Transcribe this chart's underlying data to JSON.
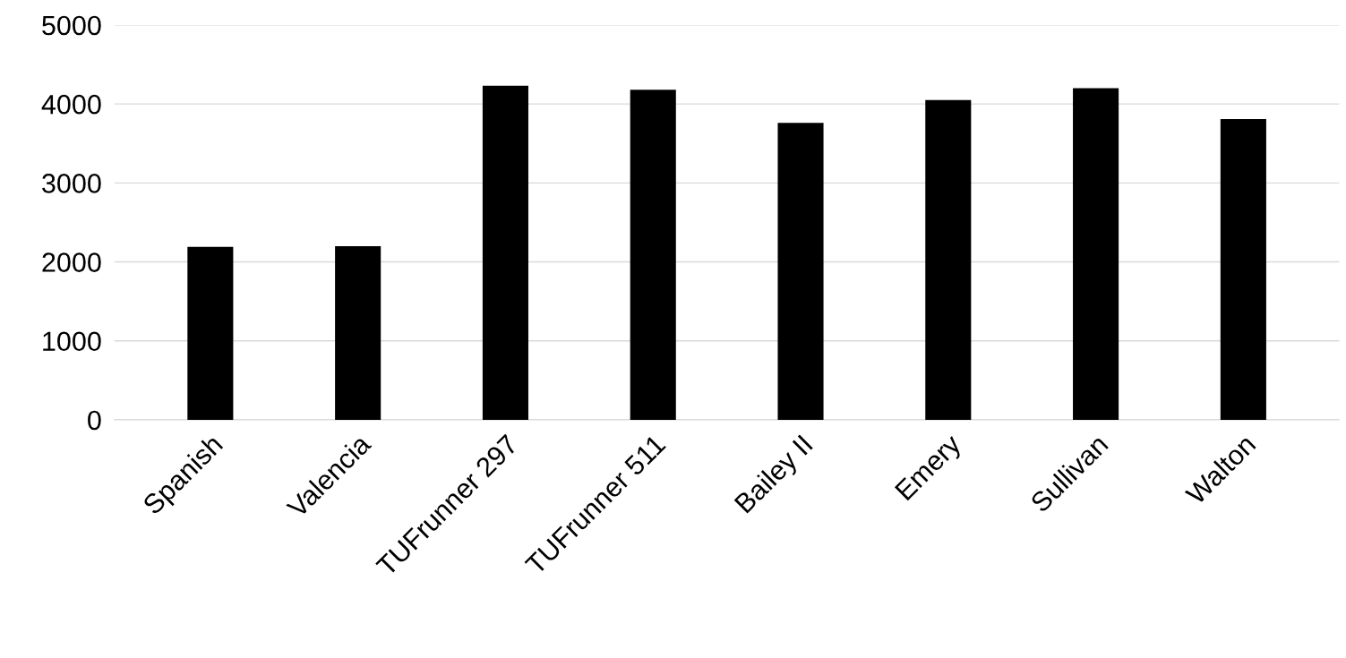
{
  "chart_data": {
    "type": "bar",
    "categories": [
      "Spanish",
      "Valencia",
      "TUFrunner 297",
      "TUFrunner 511",
      "Bailey II",
      "Emery",
      "Sullivan",
      "Walton"
    ],
    "values": [
      2190,
      2200,
      4230,
      4180,
      3760,
      4050,
      4200,
      3810
    ],
    "color": "#000000",
    "ylim": [
      0,
      5000
    ],
    "yticks": [
      0,
      1000,
      2000,
      3000,
      4000,
      5000
    ],
    "grid": "y"
  }
}
